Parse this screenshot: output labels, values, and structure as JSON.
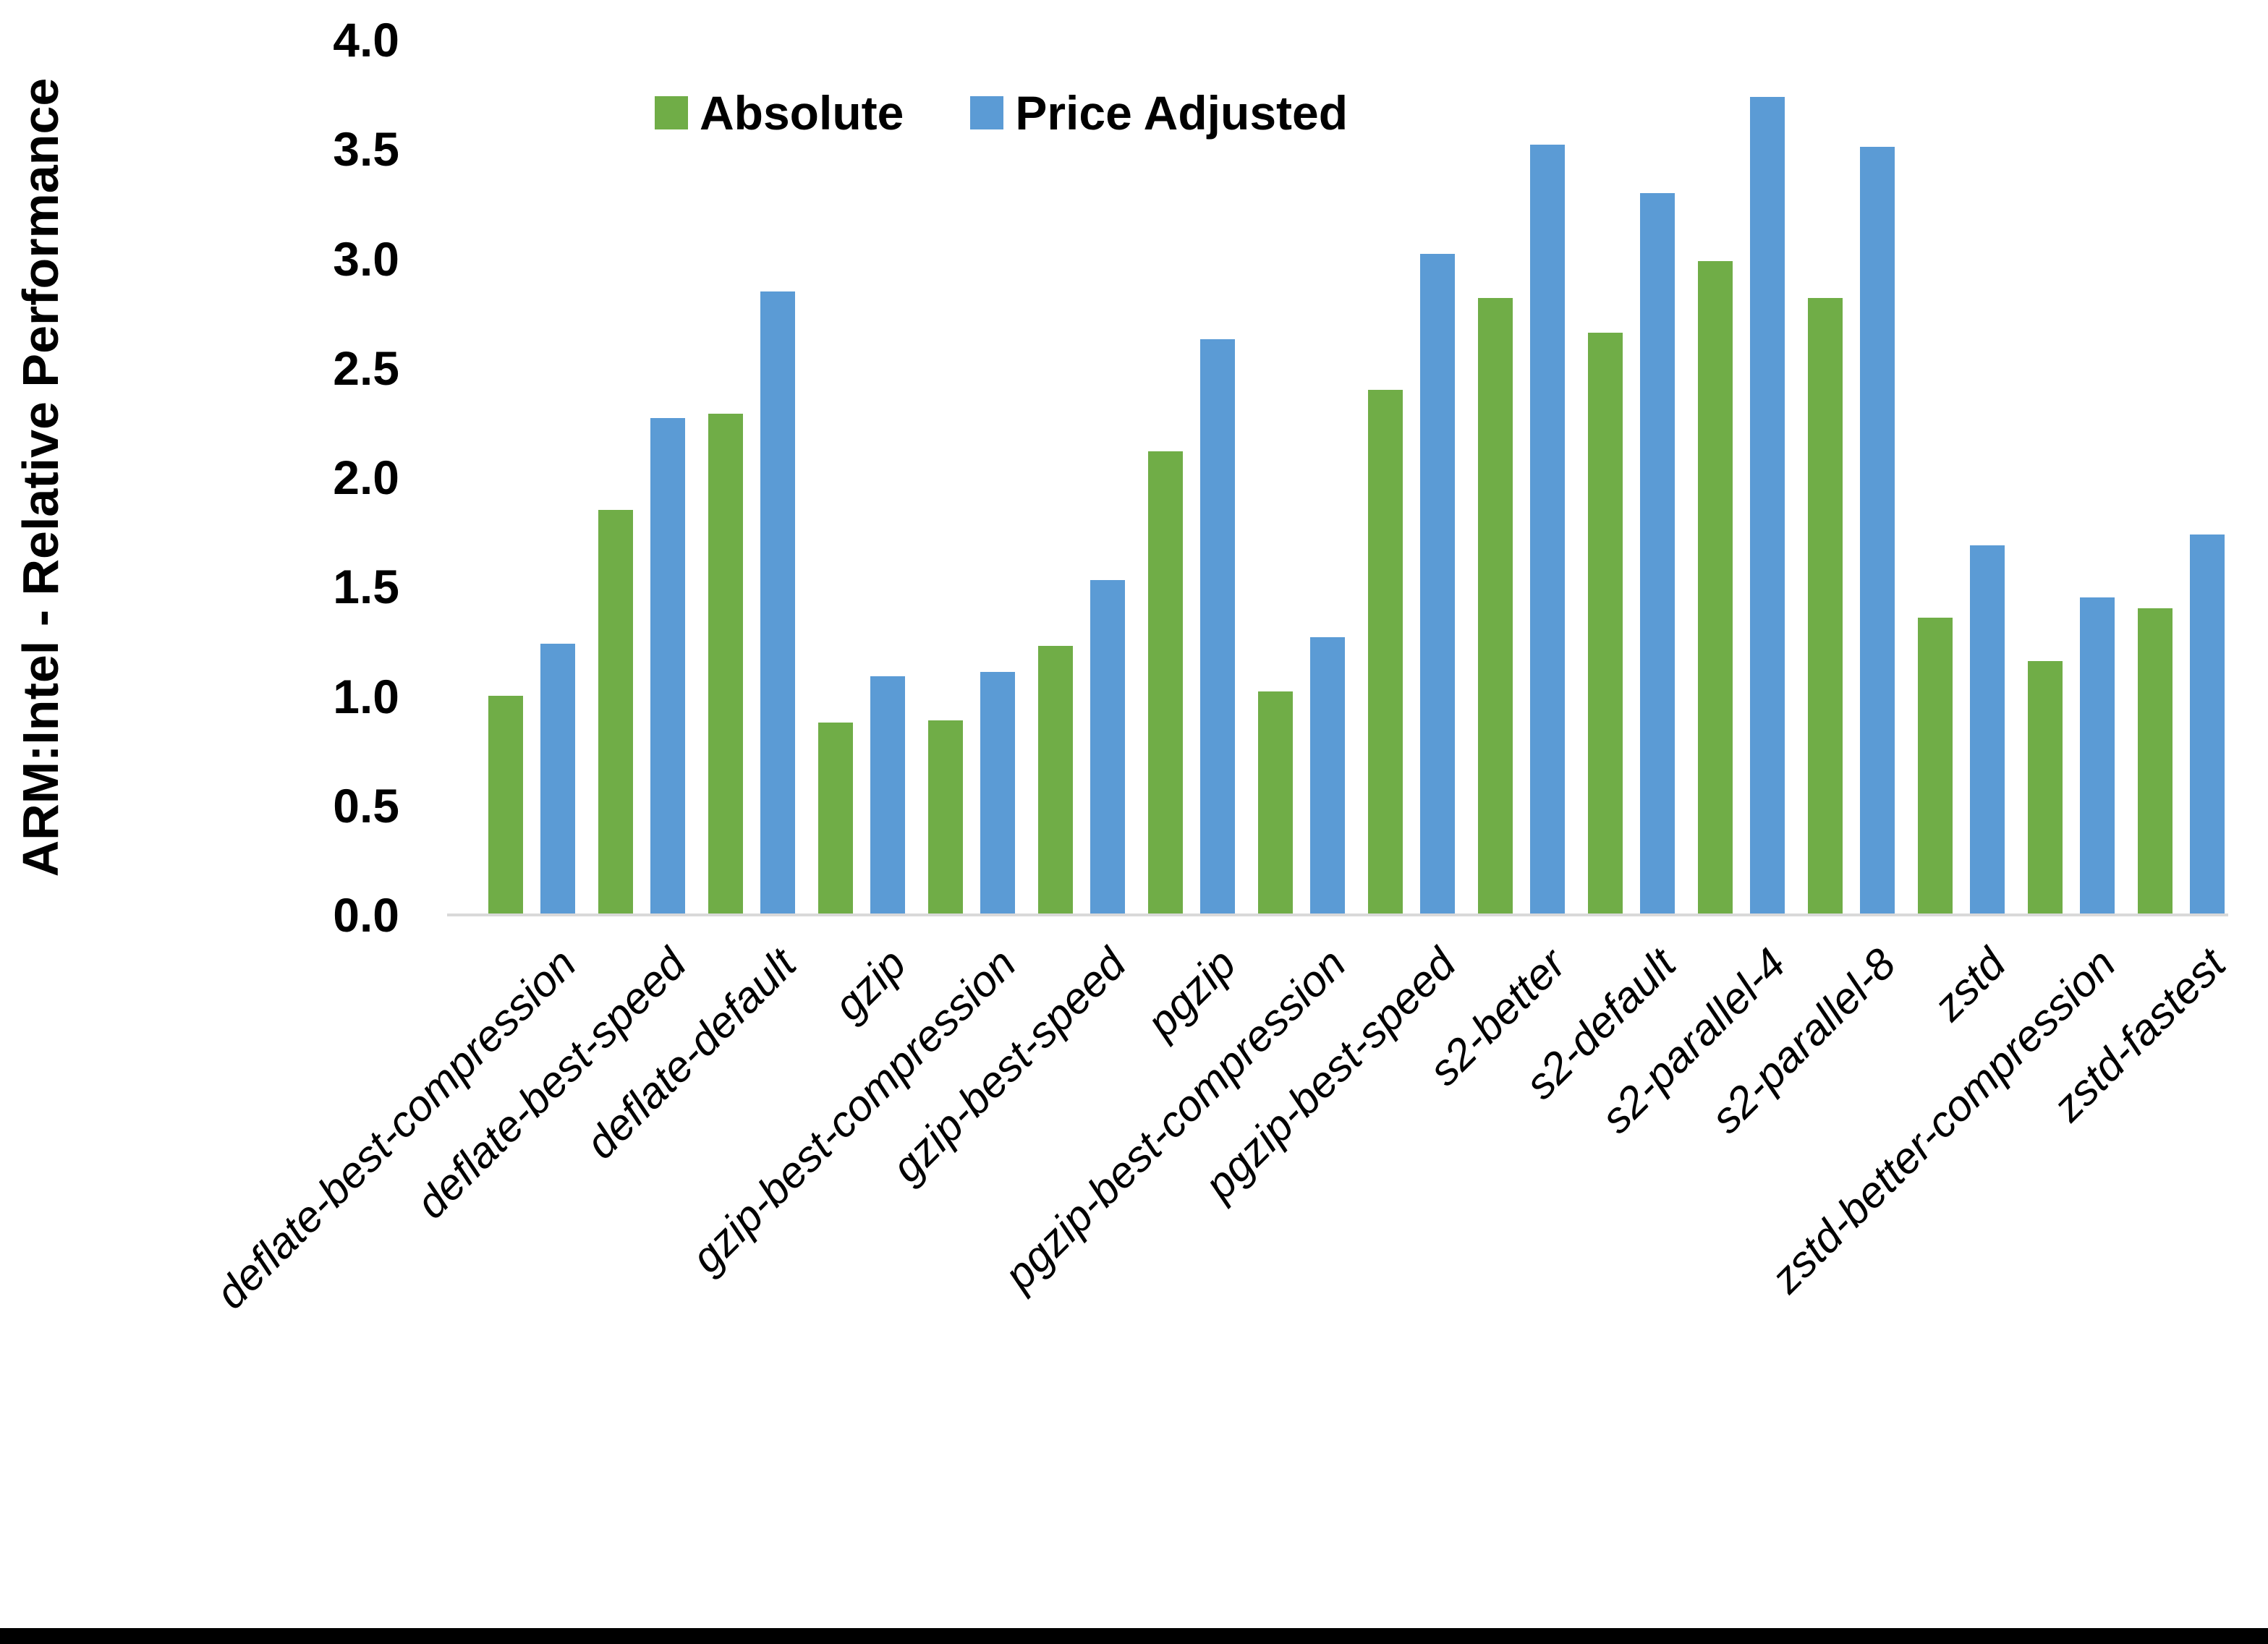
{
  "chart_data": {
    "type": "bar",
    "title": "",
    "ylabel": "ARM:Intel - Relative Performance",
    "xlabel": "",
    "ylim": [
      0.0,
      4.0
    ],
    "ytick_labels": [
      "0.0",
      "0.5",
      "1.0",
      "1.5",
      "2.0",
      "2.5",
      "3.0",
      "3.5",
      "4.0"
    ],
    "grid": false,
    "legend_position": "top-center",
    "axis_line_color": "#d9d9d9",
    "border_color": "#000000",
    "categories": [
      "deflate-best-compression",
      "deflate-best-speed",
      "deflate-default",
      "gzip",
      "gzip-best-compression",
      "gzip-best-speed",
      "pgzip",
      "pgzip-best-compression",
      "pgzip-best-speed",
      "s2-better",
      "s2-default",
      "s2-parallel-4",
      "s2-parallel-8",
      "zstd",
      "zstd-better-compression",
      "zstd-fastest"
    ],
    "series": [
      {
        "name": "Absolute",
        "color": "#70ad47",
        "values": [
          1.0,
          1.85,
          2.29,
          0.88,
          0.89,
          1.23,
          2.12,
          1.02,
          2.4,
          2.82,
          2.66,
          2.99,
          2.82,
          1.36,
          1.16,
          1.4
        ]
      },
      {
        "name": "Price Adjusted",
        "color": "#5b9bd5",
        "values": [
          1.24,
          2.27,
          2.85,
          1.09,
          1.11,
          1.53,
          2.63,
          1.27,
          3.02,
          3.52,
          3.3,
          3.74,
          3.51,
          1.69,
          1.45,
          1.74
        ]
      }
    ]
  }
}
